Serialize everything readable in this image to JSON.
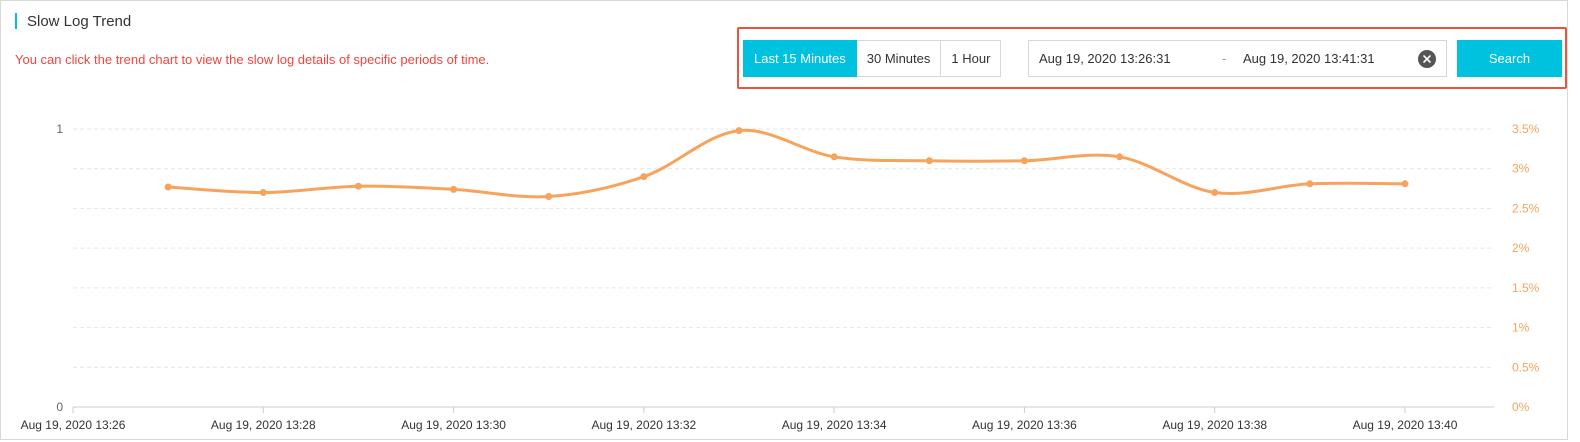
{
  "header": {
    "title": "Slow Log Trend",
    "hint": "You can click the trend chart to view the slow log details of specific periods of time."
  },
  "toolbar": {
    "ranges": [
      {
        "label": "Last 15 Minutes",
        "active": true
      },
      {
        "label": "30 Minutes",
        "active": false
      },
      {
        "label": "1 Hour",
        "active": false
      }
    ],
    "date_start": "Aug 19, 2020 13:26:31",
    "date_separator": "-",
    "date_end": "Aug 19, 2020 13:41:31",
    "search_label": "Search"
  },
  "colors": {
    "accent": "#00c1de",
    "hint": "#f0453c",
    "series": "#f7a35c",
    "highlight_border": "#e8553e"
  },
  "chart_data": {
    "type": "line",
    "x_ticks": [
      "Aug 19, 2020 13:26",
      "Aug 19, 2020 13:28",
      "Aug 19, 2020 13:30",
      "Aug 19, 2020 13:32",
      "Aug 19, 2020 13:34",
      "Aug 19, 2020 13:36",
      "Aug 19, 2020 13:38",
      "Aug 19, 2020 13:40"
    ],
    "x_range": [
      "Aug 19, 2020 13:26",
      "Aug 19, 2020 13:40"
    ],
    "left_axis": {
      "ticks": [
        "0",
        "1"
      ],
      "ylim": [
        0,
        1
      ]
    },
    "right_axis": {
      "ticks": [
        "0%",
        "0.5%",
        "1%",
        "1.5%",
        "2%",
        "2.5%",
        "3%",
        "3.5%"
      ],
      "ylim": [
        0,
        3.5
      ],
      "color": "#f7a35c"
    },
    "grid": true,
    "series": [
      {
        "axis": "right",
        "color": "#f7a35c",
        "x": [
          "Aug 19, 2020 13:27",
          "Aug 19, 2020 13:28",
          "Aug 19, 2020 13:29",
          "Aug 19, 2020 13:30",
          "Aug 19, 2020 13:31",
          "Aug 19, 2020 13:32",
          "Aug 19, 2020 13:33",
          "Aug 19, 2020 13:34",
          "Aug 19, 2020 13:35",
          "Aug 19, 2020 13:36",
          "Aug 19, 2020 13:37",
          "Aug 19, 2020 13:38",
          "Aug 19, 2020 13:39",
          "Aug 19, 2020 13:40"
        ],
        "values": [
          2.77,
          2.7,
          2.78,
          2.74,
          2.65,
          2.9,
          3.48,
          3.15,
          3.1,
          3.1,
          3.15,
          2.7,
          2.81,
          2.81
        ]
      }
    ]
  }
}
